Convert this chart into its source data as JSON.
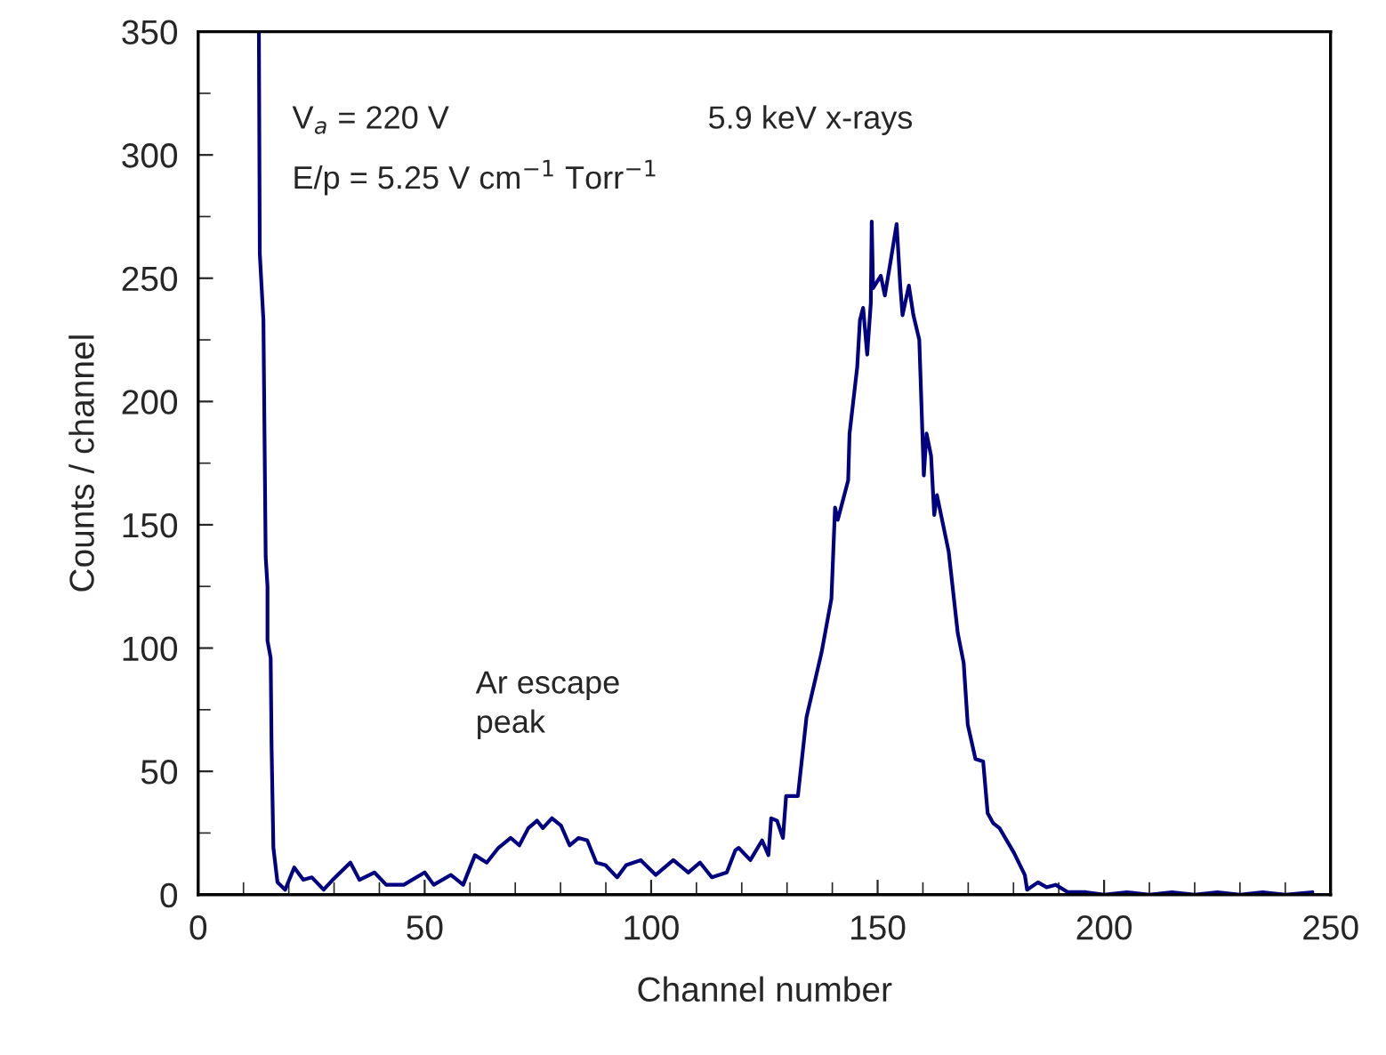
{
  "chart_data": {
    "type": "line",
    "xlabel": "Channel number",
    "ylabel": "Counts / channel",
    "annotations": [
      "V$_{a}$ = 220 V",
      "E/p = 5.25 V cm$^{−1}$ Torr$^{−1}$",
      "5.9 keV x-rays",
      "Ar escape\npeak"
    ],
    "xlim": [
      0,
      250
    ],
    "ylim": [
      0,
      350
    ],
    "xticks": [
      0,
      50,
      100,
      150,
      200,
      250
    ],
    "yticks": [
      0,
      50,
      100,
      150,
      200,
      250,
      300,
      350
    ],
    "grid": false,
    "legend": false,
    "marker": "none",
    "line_style": "solid",
    "series": [
      {
        "color": "#000080",
        "x": [
          13.4,
          13.6,
          14.4,
          14.9,
          15.3,
          15.3,
          16,
          16.2,
          16.6,
          17.5,
          19.2,
          21.2,
          23.2,
          25.1,
          27.7,
          29.7,
          33.6,
          35.6,
          38.9,
          41.5,
          45.4,
          50,
          52,
          55.8,
          58.5,
          61.1,
          63.7,
          66.3,
          69,
          70.9,
          72.9,
          74.8,
          76.1,
          78.1,
          80.1,
          82,
          84,
          85.9,
          87.9,
          89.9,
          92.5,
          94.5,
          97.7,
          101,
          104.9,
          108.2,
          110.8,
          113.4,
          116.7,
          118.6,
          119.3,
          121.9,
          124.5,
          125.9,
          126.5,
          127.8,
          129.1,
          129.8,
          132.4,
          134.3,
          137.6,
          139.8,
          140.6,
          141.2,
          143.5,
          143.8,
          145.5,
          146.1,
          146.8,
          147.7,
          148.5,
          148.7,
          149,
          150.7,
          151.6,
          152.7,
          154.2,
          155,
          155.5,
          156.9,
          157.9,
          159.2,
          160.2,
          160.8,
          161.8,
          162.5,
          163.1,
          165.7,
          167.7,
          169,
          169.9,
          171.6,
          173.3,
          174.3,
          175.5,
          176.9,
          180.1,
          182.5,
          183,
          185.4,
          187.3,
          189.3,
          192,
          196,
          200,
          205,
          210,
          215,
          220,
          225,
          230,
          235,
          240,
          246
        ],
        "values": [
          350,
          260,
          233,
          137,
          125,
          103,
          96,
          60,
          19,
          5,
          2,
          11,
          6,
          7,
          2,
          6,
          13,
          6,
          9,
          4,
          4,
          9,
          4,
          8,
          4,
          16,
          13,
          19,
          23,
          20,
          27,
          30,
          27,
          31,
          28,
          20,
          23,
          22,
          13,
          12,
          7,
          12,
          14,
          8,
          14,
          9,
          13,
          7,
          9,
          18,
          19,
          14,
          22,
          16,
          31,
          30,
          23,
          40,
          40,
          72,
          98,
          120,
          157,
          152,
          168,
          187,
          214,
          233,
          238,
          219,
          240,
          273,
          246,
          251,
          243,
          255,
          272,
          247,
          235,
          247,
          235,
          225,
          170,
          187,
          178,
          154,
          162,
          139,
          106,
          94,
          69,
          55,
          54,
          33,
          29,
          27,
          17,
          8,
          2,
          5,
          3,
          4,
          1,
          1,
          0,
          1,
          0,
          1,
          0,
          1,
          0,
          1,
          0,
          1
        ]
      }
    ]
  }
}
